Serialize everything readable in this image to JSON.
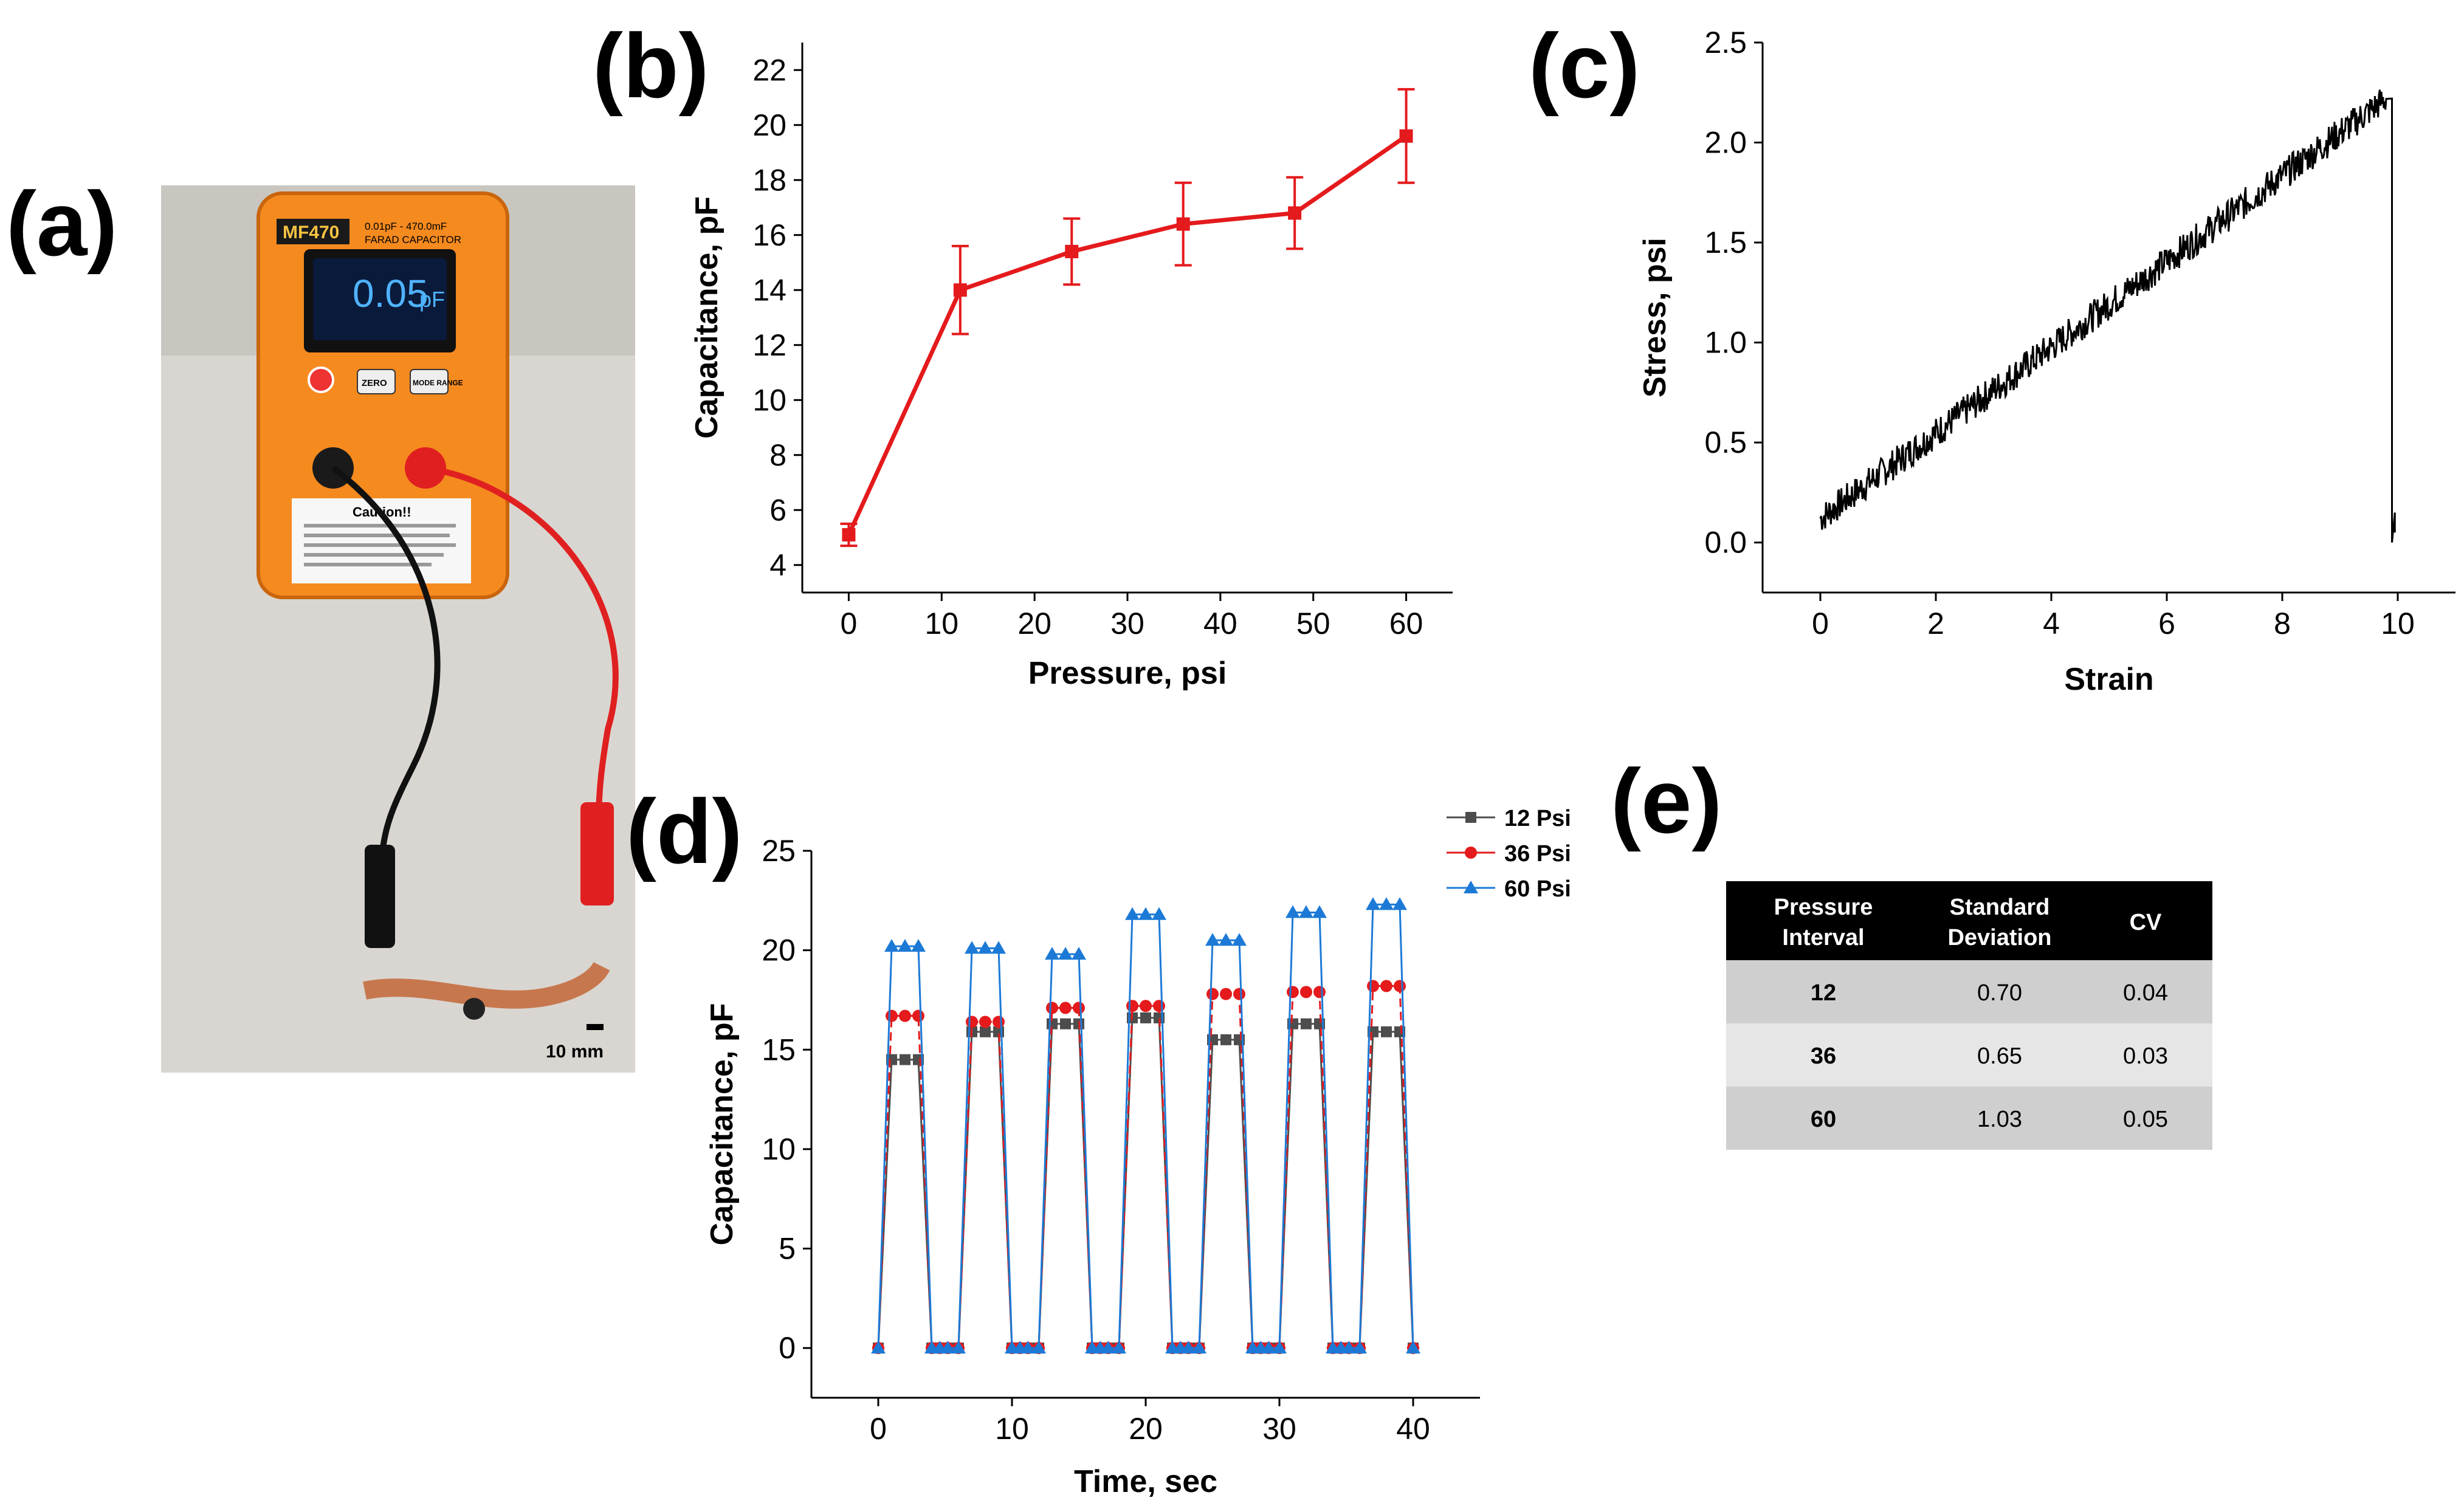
{
  "panels": {
    "a": {
      "letter": "(a)",
      "meter_model": "MF470",
      "meter_range": "0.01pF - 470.0mF",
      "meter_subtitle": "FARAD CAPACITOR",
      "meter_reading": "0.05",
      "meter_unit": "pF",
      "btn_zero": "ZERO",
      "btn_mode": "MODE RANGE",
      "caution_title": "Caution!!",
      "scale_label": "10 mm"
    },
    "b": {
      "letter": "(b)"
    },
    "c": {
      "letter": "(c)"
    },
    "d": {
      "letter": "(d)"
    },
    "e": {
      "letter": "(e)"
    }
  },
  "colors": {
    "red": "#e41a1c",
    "black": "#000000",
    "dark_gray": "#4d4d4d",
    "blue": "#1c7ad6",
    "table_header": "#000000",
    "row_dark": "#cfcfcf",
    "row_light": "#e6e6e6",
    "meter_orange": "#f58a1f"
  },
  "chart_data": [
    {
      "id": "b",
      "type": "line",
      "x": [
        0,
        12,
        24,
        36,
        48,
        60
      ],
      "values": [
        5.1,
        14.0,
        15.4,
        16.4,
        16.8,
        19.6
      ],
      "errors": [
        0.4,
        1.6,
        1.2,
        1.5,
        1.3,
        1.7
      ],
      "xlabel": "Pressure, psi",
      "ylabel": "Capacitance, pF",
      "xlim": [
        -5,
        65
      ],
      "ylim": [
        3,
        23
      ],
      "xticks": [
        0,
        10,
        20,
        30,
        40,
        50,
        60
      ],
      "yticks": [
        4,
        6,
        8,
        10,
        12,
        14,
        16,
        18,
        20,
        22
      ],
      "color": "#e41a1c"
    },
    {
      "id": "c",
      "type": "line",
      "description_free": true,
      "xlabel": "Strain",
      "ylabel": "Stress, psi",
      "xlim": [
        -1,
        11
      ],
      "ylim": [
        -0.25,
        2.5
      ],
      "xticks": [
        0,
        2,
        4,
        6,
        8,
        10
      ],
      "yticks": [
        0.0,
        0.5,
        1.0,
        1.5,
        2.0,
        2.5
      ],
      "ytick_labels": [
        "0.0",
        "0.5",
        "1.0",
        "1.5",
        "2.0",
        "2.5"
      ],
      "trend_start": [
        0.0,
        0.12
      ],
      "trend_end": [
        9.8,
        2.22
      ],
      "drop_to": [
        9.9,
        0.0
      ],
      "tail": [
        9.95,
        0.15
      ],
      "color": "#000000"
    },
    {
      "id": "d",
      "type": "line",
      "xlabel": "Time, sec",
      "ylabel": "Capacitance, pF",
      "xlim": [
        -5,
        45
      ],
      "ylim": [
        -2.5,
        25
      ],
      "xticks": [
        0,
        10,
        20,
        30,
        40
      ],
      "yticks": [
        0,
        5,
        10,
        15,
        20,
        25
      ],
      "cycle_starts": [
        0,
        6,
        12,
        18,
        24,
        30,
        36
      ],
      "cycle_rise": 1,
      "cycle_plateau": 2,
      "cycle_fall": 1,
      "series": [
        {
          "name": "12 Psi",
          "color": "#4d4d4d",
          "marker": "square",
          "plateaus": [
            14.5,
            15.9,
            16.3,
            16.6,
            15.5,
            16.3,
            15.9
          ]
        },
        {
          "name": "36 Psi",
          "color": "#e41a1c",
          "marker": "circle",
          "plateaus": [
            16.7,
            16.4,
            17.1,
            17.2,
            17.8,
            17.9,
            18.2
          ]
        },
        {
          "name": "60 Psi",
          "color": "#1c7ad6",
          "marker": "triangle",
          "plateaus": [
            20.2,
            20.1,
            19.8,
            21.8,
            20.5,
            21.9,
            22.3
          ]
        }
      ]
    },
    {
      "id": "e",
      "type": "table",
      "headers": [
        [
          "Pressure",
          "Interval"
        ],
        [
          "Standard",
          "Deviation"
        ],
        [
          "CV"
        ]
      ],
      "rows": [
        [
          "12",
          "0.70",
          "0.04"
        ],
        [
          "36",
          "0.65",
          "0.03"
        ],
        [
          "60",
          "1.03",
          "0.05"
        ]
      ]
    }
  ]
}
